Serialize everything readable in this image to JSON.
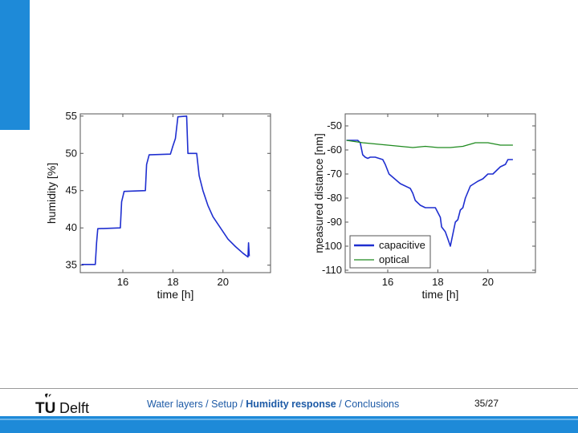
{
  "colors": {
    "accent": "#1e8ad8",
    "capacitive": "#1f2fd0",
    "optical": "#1e8a1e"
  },
  "footer": {
    "logo_tu": "TU",
    "logo_delft": "Delft",
    "crumbs": [
      "Water layers",
      "Setup",
      "Humidity response",
      "Conclusions"
    ],
    "separator": " / ",
    "active_crumb": "Humidity response",
    "page_number": "35/27"
  },
  "chart_data": [
    {
      "type": "line",
      "xlabel": "time [h]",
      "ylabel": "humidity [%]",
      "xlim": [
        14.3,
        21.9
      ],
      "ylim": [
        34,
        55.3
      ],
      "xticks": [
        16,
        18,
        20
      ],
      "yticks": [
        35,
        40,
        45,
        50,
        55
      ],
      "series": [
        {
          "name": "humidity",
          "x": [
            14.35,
            14.9,
            14.95,
            15.0,
            15.9,
            15.95,
            16.05,
            16.9,
            16.95,
            17.05,
            17.9,
            18.0,
            18.1,
            18.2,
            18.55,
            18.6,
            18.95,
            19.05,
            19.2,
            19.4,
            19.6,
            19.8,
            20.0,
            20.2,
            20.5,
            20.8,
            21.0,
            21.02,
            21.05
          ],
          "y": [
            35.1,
            35.1,
            38.0,
            39.9,
            40.0,
            43.5,
            44.9,
            45.0,
            48.5,
            49.8,
            49.9,
            51.0,
            52.0,
            54.9,
            55.0,
            50.0,
            50.0,
            47.0,
            45.0,
            43.0,
            41.5,
            40.5,
            39.5,
            38.5,
            37.5,
            36.6,
            36.1,
            38.0,
            36.2
          ]
        }
      ]
    },
    {
      "type": "line",
      "xlabel": "time [h]",
      "ylabel": "measured distance [nm]",
      "xlim": [
        14.3,
        21.9
      ],
      "ylim": [
        -111,
        -45
      ],
      "xticks": [
        16,
        18,
        20
      ],
      "yticks": [
        -50,
        -60,
        -70,
        -80,
        -90,
        -100,
        -110
      ],
      "legend": "bottom-left",
      "series": [
        {
          "name": "capacitive",
          "x": [
            14.35,
            14.8,
            14.9,
            15.0,
            15.1,
            15.2,
            15.3,
            15.5,
            15.8,
            15.9,
            16.05,
            16.5,
            16.9,
            17.0,
            17.1,
            17.3,
            17.5,
            17.6,
            17.9,
            18.1,
            18.15,
            18.3,
            18.4,
            18.5,
            18.6,
            18.7,
            18.8,
            18.9,
            19.0,
            19.1,
            19.3,
            19.6,
            19.8,
            20.0,
            20.2,
            20.5,
            20.7,
            20.8,
            21.0
          ],
          "y": [
            -56,
            -56,
            -57,
            -62,
            -63,
            -63.5,
            -63,
            -63,
            -64,
            -66,
            -70,
            -74,
            -76,
            -78,
            -81,
            -83,
            -84,
            -84,
            -84,
            -88,
            -92,
            -94,
            -97,
            -100,
            -95,
            -90,
            -89,
            -85,
            -84,
            -80,
            -75,
            -73,
            -72,
            -70,
            -70,
            -67,
            -66,
            -64,
            -64
          ]
        },
        {
          "name": "optical",
          "x": [
            14.35,
            15.0,
            15.5,
            16.0,
            16.5,
            17.0,
            17.5,
            18.0,
            18.5,
            19.0,
            19.5,
            20.0,
            20.5,
            21.0
          ],
          "y": [
            -56,
            -57,
            -57.5,
            -58,
            -58.5,
            -59,
            -58.5,
            -59,
            -59,
            -58.5,
            -57,
            -57,
            -58,
            -58
          ]
        }
      ]
    }
  ]
}
